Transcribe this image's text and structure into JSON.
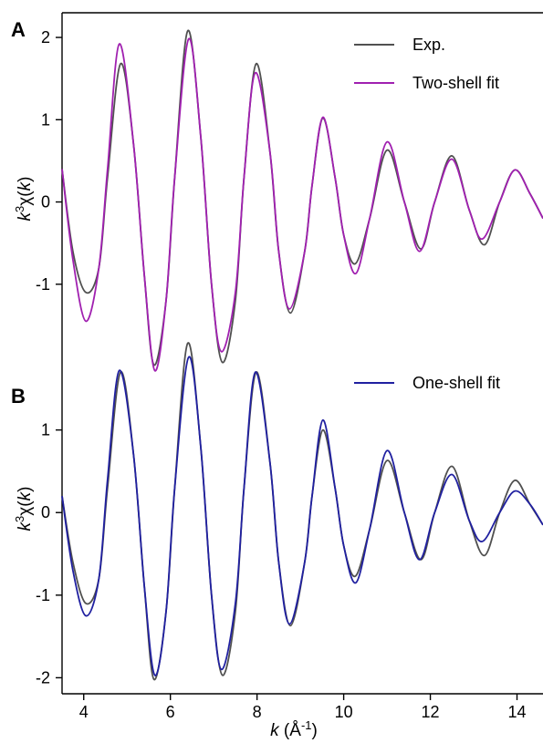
{
  "chart_data": {
    "type": "line",
    "xlabel": {
      "italic": "k",
      "unit_base": " (Å",
      "unit_exp": "-1",
      "close": ")"
    },
    "xlim": [
      3.5,
      14.6
    ],
    "x_ticks": [
      "4",
      "6",
      "8",
      "10",
      "12",
      "14"
    ],
    "x_tick_values": [
      4,
      6,
      8,
      10,
      12,
      14
    ],
    "ylabel": {
      "k": "k",
      "exp": "3",
      "chi": "χ(",
      "k2": "k",
      "close": ")"
    },
    "colors": {
      "exp": "#505050",
      "two_shell": "#a020b0",
      "one_shell": "#2020a0"
    },
    "panels": [
      {
        "letter": "A",
        "ylim": [
          -2.0,
          2.3
        ],
        "y_ticks": [
          "-1",
          "0",
          "1",
          "2"
        ],
        "y_tick_values": [
          -1,
          0,
          1,
          2
        ],
        "legend": [
          "Exp.",
          "Two-shell fit"
        ],
        "series": [
          {
            "name": "Exp.",
            "color": "#505050",
            "points": [
              [
                3.5,
                0.4
              ],
              [
                3.75,
                -0.6
              ],
              [
                4.05,
                -1.1
              ],
              [
                4.35,
                -0.8
              ],
              [
                4.55,
                0.3
              ],
              [
                4.85,
                1.68
              ],
              [
                5.15,
                0.7
              ],
              [
                5.4,
                -0.9
              ],
              [
                5.62,
                -1.98
              ],
              [
                5.9,
                -1.2
              ],
              [
                6.1,
                0.3
              ],
              [
                6.4,
                2.08
              ],
              [
                6.7,
                0.8
              ],
              [
                6.95,
                -1.0
              ],
              [
                7.2,
                -1.95
              ],
              [
                7.5,
                -1.2
              ],
              [
                7.7,
                0.3
              ],
              [
                7.98,
                1.68
              ],
              [
                8.3,
                0.6
              ],
              [
                8.5,
                -0.6
              ],
              [
                8.77,
                -1.35
              ],
              [
                9.1,
                -0.6
              ],
              [
                9.27,
                0.2
              ],
              [
                9.52,
                1.02
              ],
              [
                9.8,
                0.3
              ],
              [
                10.0,
                -0.4
              ],
              [
                10.27,
                -0.75
              ],
              [
                10.6,
                -0.2
              ],
              [
                11.0,
                0.63
              ],
              [
                11.4,
                0.0
              ],
              [
                11.78,
                -0.57
              ],
              [
                12.1,
                0.0
              ],
              [
                12.5,
                0.56
              ],
              [
                12.9,
                -0.1
              ],
              [
                13.25,
                -0.52
              ],
              [
                13.6,
                0.0
              ],
              [
                13.95,
                0.39
              ],
              [
                14.3,
                0.1
              ],
              [
                14.6,
                -0.2
              ]
            ]
          },
          {
            "name": "Two-shell fit",
            "color": "#a020b0",
            "points": [
              [
                3.5,
                0.4
              ],
              [
                3.75,
                -0.7
              ],
              [
                4.05,
                -1.45
              ],
              [
                4.35,
                -0.8
              ],
              [
                4.55,
                0.4
              ],
              [
                4.82,
                1.92
              ],
              [
                5.15,
                0.7
              ],
              [
                5.4,
                -0.9
              ],
              [
                5.64,
                -2.05
              ],
              [
                5.9,
                -1.2
              ],
              [
                6.1,
                0.3
              ],
              [
                6.42,
                1.98
              ],
              [
                6.7,
                0.8
              ],
              [
                6.95,
                -1.0
              ],
              [
                7.18,
                -1.82
              ],
              [
                7.5,
                -1.1
              ],
              [
                7.7,
                0.3
              ],
              [
                7.96,
                1.57
              ],
              [
                8.3,
                0.6
              ],
              [
                8.5,
                -0.6
              ],
              [
                8.75,
                -1.3
              ],
              [
                9.1,
                -0.6
              ],
              [
                9.27,
                0.2
              ],
              [
                9.52,
                1.03
              ],
              [
                9.8,
                0.3
              ],
              [
                10.0,
                -0.4
              ],
              [
                10.28,
                -0.87
              ],
              [
                10.6,
                -0.2
              ],
              [
                11.0,
                0.73
              ],
              [
                11.4,
                0.0
              ],
              [
                11.75,
                -0.6
              ],
              [
                12.1,
                0.0
              ],
              [
                12.5,
                0.52
              ],
              [
                12.9,
                -0.1
              ],
              [
                13.2,
                -0.45
              ],
              [
                13.6,
                0.0
              ],
              [
                13.95,
                0.39
              ],
              [
                14.3,
                0.1
              ],
              [
                14.6,
                -0.2
              ]
            ]
          }
        ]
      },
      {
        "letter": "B",
        "ylim": [
          -2.15,
          2.1
        ],
        "y_ticks": [
          "-2",
          "-1",
          "0",
          "1"
        ],
        "y_tick_values": [
          -2,
          -1,
          0,
          1
        ],
        "legend": [
          "One-shell fit"
        ],
        "series": [
          {
            "name": "Exp.",
            "color": "#505050",
            "points": [
              [
                3.5,
                0.2
              ],
              [
                3.75,
                -0.6
              ],
              [
                4.05,
                -1.1
              ],
              [
                4.35,
                -0.8
              ],
              [
                4.55,
                0.3
              ],
              [
                4.85,
                1.7
              ],
              [
                5.15,
                0.7
              ],
              [
                5.4,
                -0.9
              ],
              [
                5.62,
                -2.02
              ],
              [
                5.9,
                -1.2
              ],
              [
                6.1,
                0.3
              ],
              [
                6.4,
                2.05
              ],
              [
                6.7,
                0.8
              ],
              [
                6.95,
                -1.0
              ],
              [
                7.2,
                -1.97
              ],
              [
                7.5,
                -1.2
              ],
              [
                7.7,
                0.3
              ],
              [
                7.98,
                1.7
              ],
              [
                8.3,
                0.6
              ],
              [
                8.5,
                -0.6
              ],
              [
                8.77,
                -1.37
              ],
              [
                9.1,
                -0.6
              ],
              [
                9.27,
                0.2
              ],
              [
                9.52,
                1.0
              ],
              [
                9.8,
                0.3
              ],
              [
                10.0,
                -0.4
              ],
              [
                10.27,
                -0.77
              ],
              [
                10.6,
                -0.2
              ],
              [
                11.0,
                0.63
              ],
              [
                11.4,
                0.0
              ],
              [
                11.78,
                -0.57
              ],
              [
                12.1,
                0.0
              ],
              [
                12.5,
                0.56
              ],
              [
                12.9,
                -0.1
              ],
              [
                13.25,
                -0.52
              ],
              [
                13.6,
                0.0
              ],
              [
                13.95,
                0.39
              ],
              [
                14.3,
                0.1
              ],
              [
                14.6,
                -0.15
              ]
            ]
          },
          {
            "name": "One-shell fit",
            "color": "#2020a0",
            "points": [
              [
                3.5,
                0.2
              ],
              [
                3.75,
                -0.7
              ],
              [
                4.05,
                -1.25
              ],
              [
                4.35,
                -0.8
              ],
              [
                4.55,
                0.4
              ],
              [
                4.82,
                1.72
              ],
              [
                5.15,
                0.7
              ],
              [
                5.4,
                -0.9
              ],
              [
                5.64,
                -1.97
              ],
              [
                5.9,
                -1.2
              ],
              [
                6.1,
                0.3
              ],
              [
                6.42,
                1.88
              ],
              [
                6.7,
                0.8
              ],
              [
                6.95,
                -1.0
              ],
              [
                7.18,
                -1.9
              ],
              [
                7.5,
                -1.1
              ],
              [
                7.7,
                0.3
              ],
              [
                7.96,
                1.7
              ],
              [
                8.3,
                0.6
              ],
              [
                8.5,
                -0.6
              ],
              [
                8.75,
                -1.35
              ],
              [
                9.1,
                -0.6
              ],
              [
                9.27,
                0.2
              ],
              [
                9.52,
                1.12
              ],
              [
                9.8,
                0.3
              ],
              [
                10.0,
                -0.4
              ],
              [
                10.28,
                -0.85
              ],
              [
                10.6,
                -0.2
              ],
              [
                11.0,
                0.75
              ],
              [
                11.4,
                0.0
              ],
              [
                11.75,
                -0.57
              ],
              [
                12.1,
                0.0
              ],
              [
                12.5,
                0.46
              ],
              [
                12.9,
                -0.1
              ],
              [
                13.2,
                -0.35
              ],
              [
                13.6,
                0.0
              ],
              [
                13.95,
                0.26
              ],
              [
                14.3,
                0.1
              ],
              [
                14.6,
                -0.15
              ]
            ]
          }
        ]
      }
    ]
  }
}
